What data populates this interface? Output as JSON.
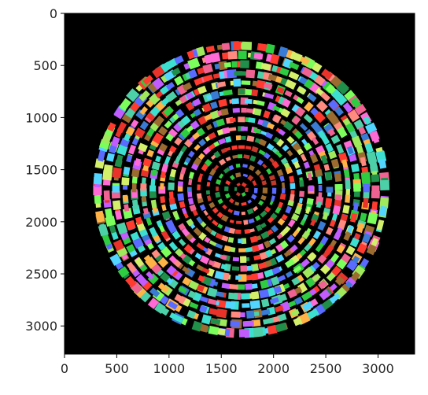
{
  "figure": {
    "background_color": "#000000",
    "axis_color": "#000000",
    "tick_label_color": "#262626"
  },
  "chart_data": {
    "type": "heatmap",
    "title": "",
    "xlabel": "",
    "ylabel": "",
    "xlim": [
      0,
      3350
    ],
    "ylim": [
      3270,
      0
    ],
    "y_inverted": true,
    "grid": false,
    "x_ticks": [
      "0",
      "500",
      "1000",
      "1500",
      "2000",
      "2500",
      "3000"
    ],
    "y_ticks": [
      "0",
      "500",
      "1000",
      "1500",
      "2000",
      "2500",
      "3000"
    ],
    "x_tick_values": [
      0,
      500,
      1000,
      1500,
      2000,
      2500,
      3000
    ],
    "y_tick_values": [
      0,
      500,
      1000,
      1500,
      2000,
      2500,
      3000
    ],
    "image_description_data": {
      "center": [
        1690,
        1690
      ],
      "outer_radius": 1410,
      "palette": [
        "#ff3b30",
        "#e8322a",
        "#2ecc40",
        "#7cff5c",
        "#3a7bd5",
        "#5a6bff",
        "#ff6ad5",
        "#c25cff",
        "#3de0d0",
        "#ffb347",
        "#a0e85c",
        "#ff8a80",
        "#52d6ff",
        "#9c6b30",
        "#1f8f4a",
        "#d4f06a",
        "#f06292",
        "#4dd0a8"
      ]
    }
  }
}
